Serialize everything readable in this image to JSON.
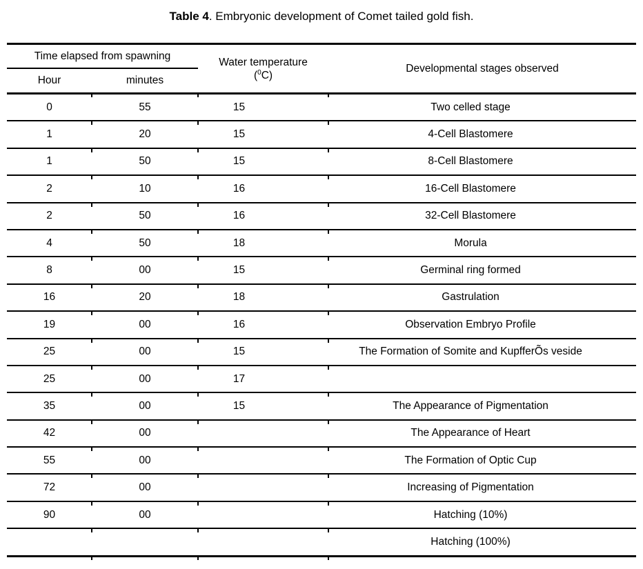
{
  "caption": {
    "bold": "Table 4",
    "rest": ". Embryonic development of Comet tailed gold fish."
  },
  "table": {
    "header": {
      "time_group": "Time elapsed from spawning",
      "hour": "Hour",
      "minutes": "minutes",
      "temp_line1": "Water temperature",
      "temp_paren_open": "(",
      "temp_sup": "0",
      "temp_close": "C)",
      "stages": "Developmental stages observed"
    },
    "rows": [
      {
        "hour": "0",
        "minutes": "55",
        "temp": "15",
        "stage": "Two celled stage"
      },
      {
        "hour": "1",
        "minutes": "20",
        "temp": "15",
        "stage": "4-Cell Blastomere"
      },
      {
        "hour": "1",
        "minutes": "50",
        "temp": "15",
        "stage": "8-Cell Blastomere"
      },
      {
        "hour": "2",
        "minutes": "10",
        "temp": "16",
        "stage": "16-Cell Blastomere"
      },
      {
        "hour": "2",
        "minutes": "50",
        "temp": "16",
        "stage": "32-Cell Blastomere"
      },
      {
        "hour": "4",
        "minutes": "50",
        "temp": "18",
        "stage": "Morula"
      },
      {
        "hour": "8",
        "minutes": "00",
        "temp": "15",
        "stage": "Germinal ring formed"
      },
      {
        "hour": "16",
        "minutes": "20",
        "temp": "18",
        "stage": "Gastrulation"
      },
      {
        "hour": "19",
        "minutes": "00",
        "temp": "16",
        "stage": "Observation Embryo Profile"
      },
      {
        "hour": "25",
        "minutes": "00",
        "temp": "15",
        "stage": "The Formation of Somite and KupfferÕs veside"
      },
      {
        "hour": "25",
        "minutes": "00",
        "temp": "17",
        "stage": ""
      },
      {
        "hour": "35",
        "minutes": "00",
        "temp": "15",
        "stage": "The Appearance of Pigmentation"
      },
      {
        "hour": "42",
        "minutes": "00",
        "temp": "",
        "stage": "The Appearance of Heart"
      },
      {
        "hour": "55",
        "minutes": "00",
        "temp": "",
        "stage": "The Formation of Optic Cup"
      },
      {
        "hour": "72",
        "minutes": "00",
        "temp": "",
        "stage": "Increasing of Pigmentation"
      },
      {
        "hour": "90",
        "minutes": "00",
        "temp": "",
        "stage": "Hatching (10%)"
      },
      {
        "hour": "",
        "minutes": "",
        "temp": "",
        "stage": "Hatching (100%)"
      }
    ]
  },
  "colors": {
    "text": "#000000",
    "background": "#ffffff",
    "rule": "#000000"
  }
}
